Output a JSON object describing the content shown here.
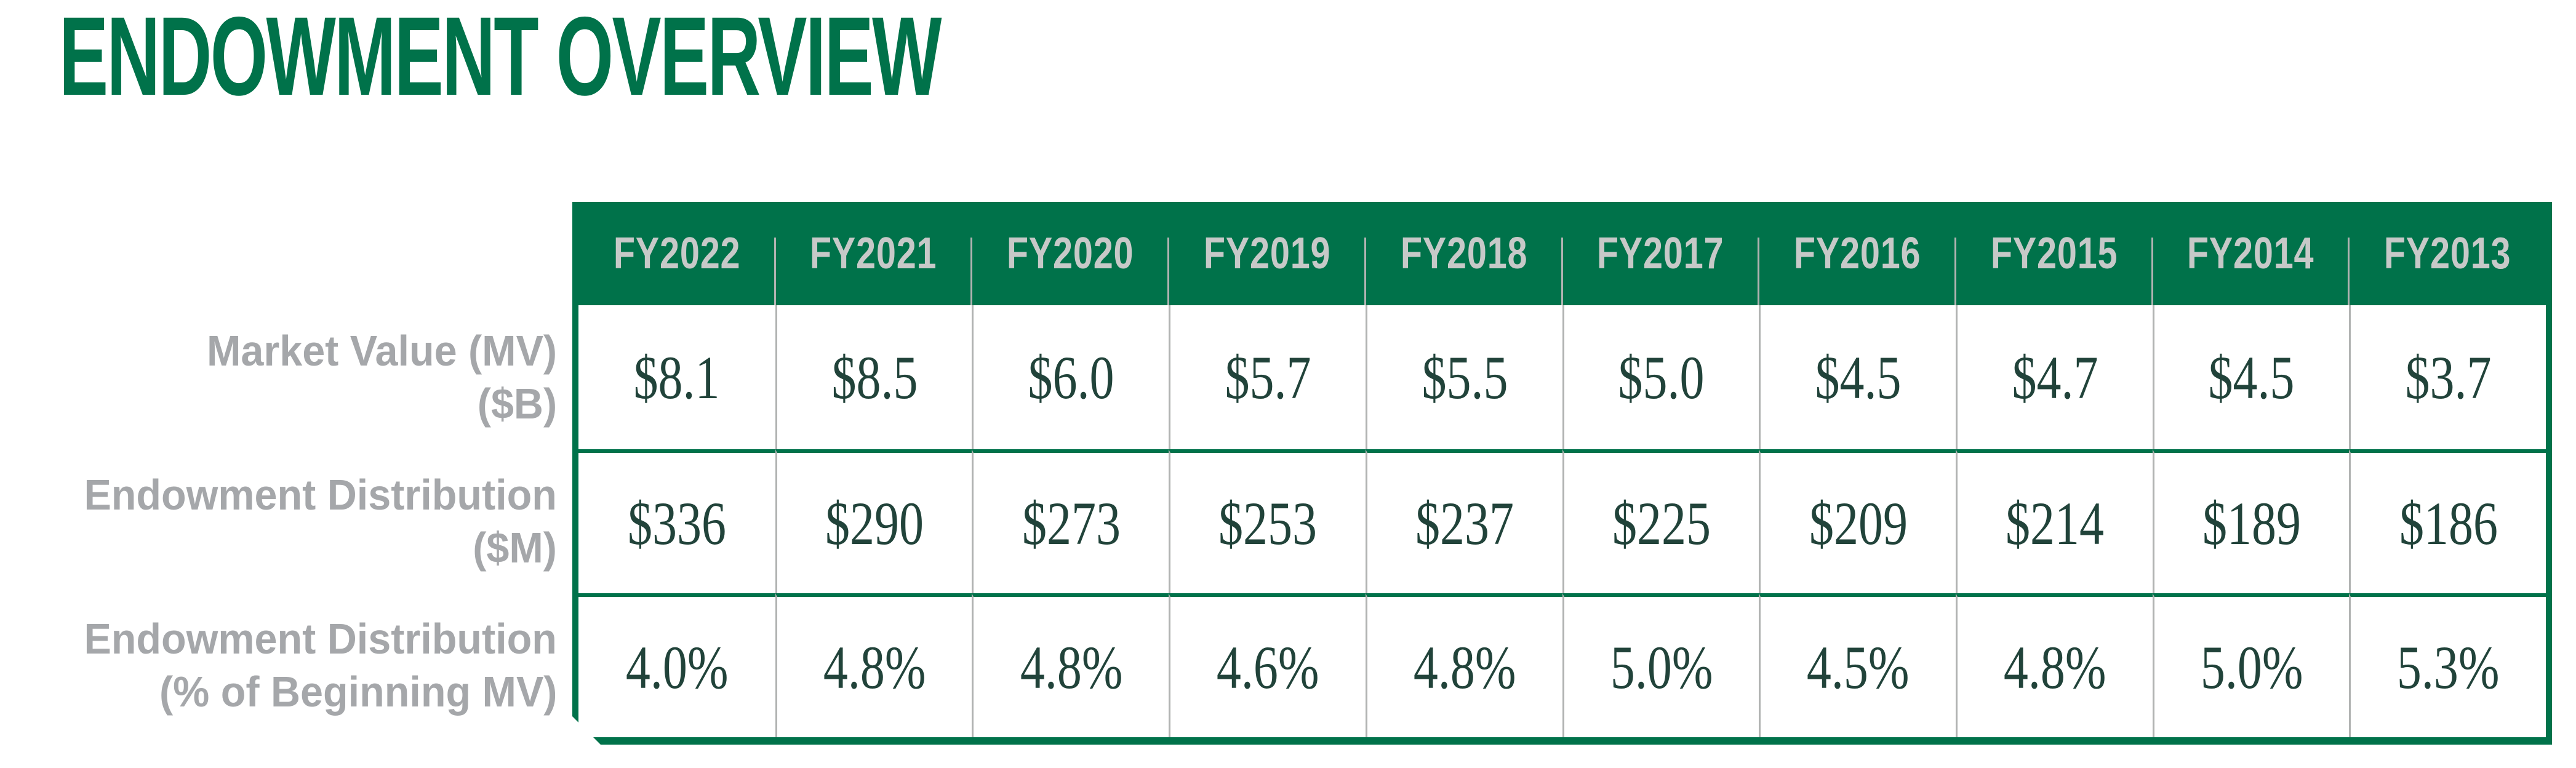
{
  "title": "ENDOWMENT OVERVIEW",
  "colors": {
    "brand_green": "#00724A",
    "value_green": "#21433A",
    "label_gray": "#A5A7AA",
    "header_text_gray": "#C7C9C8",
    "divider_gray": "#B1B3B2",
    "page_bg": "#FFFFFF"
  },
  "table": {
    "columns": [
      "FY2022",
      "FY2021",
      "FY2020",
      "FY2019",
      "FY2018",
      "FY2017",
      "FY2016",
      "FY2015",
      "FY2014",
      "FY2013"
    ],
    "rows": [
      {
        "label_line1": "Market Value (MV)",
        "label_line2": "($B)",
        "values": [
          "$8.1",
          "$8.5",
          "$6.0",
          "$5.7",
          "$5.5",
          "$5.0",
          "$4.5",
          "$4.7",
          "$4.5",
          "$3.7"
        ]
      },
      {
        "label_line1": "Endowment Distribution",
        "label_line2": "($M)",
        "values": [
          "$336",
          "$290",
          "$273",
          "$253",
          "$237",
          "$225",
          "$209",
          "$214",
          "$189",
          "$186"
        ]
      },
      {
        "label_line1": "Endowment Distribution",
        "label_line2": "(% of Beginning MV)",
        "values": [
          "4.0%",
          "4.8%",
          "4.8%",
          "4.6%",
          "4.8%",
          "5.0%",
          "4.5%",
          "4.8%",
          "5.0%",
          "5.3%"
        ]
      }
    ]
  },
  "chart_data": {
    "type": "table",
    "title": "ENDOWMENT OVERVIEW",
    "categories": [
      "FY2022",
      "FY2021",
      "FY2020",
      "FY2019",
      "FY2018",
      "FY2017",
      "FY2016",
      "FY2015",
      "FY2014",
      "FY2013"
    ],
    "series": [
      {
        "name": "Market Value (MV) ($B)",
        "values": [
          8.1,
          8.5,
          6.0,
          5.7,
          5.5,
          5.0,
          4.5,
          4.7,
          4.5,
          3.7
        ]
      },
      {
        "name": "Endowment Distribution ($M)",
        "values": [
          336,
          290,
          273,
          253,
          237,
          225,
          209,
          214,
          189,
          186
        ]
      },
      {
        "name": "Endowment Distribution (% of Beginning MV)",
        "values": [
          4.0,
          4.8,
          4.8,
          4.6,
          4.8,
          5.0,
          4.5,
          4.8,
          5.0,
          5.3
        ]
      }
    ],
    "layout": {
      "header_position": "top",
      "row_labels_position": "left",
      "grid": true,
      "legend": "none"
    }
  }
}
